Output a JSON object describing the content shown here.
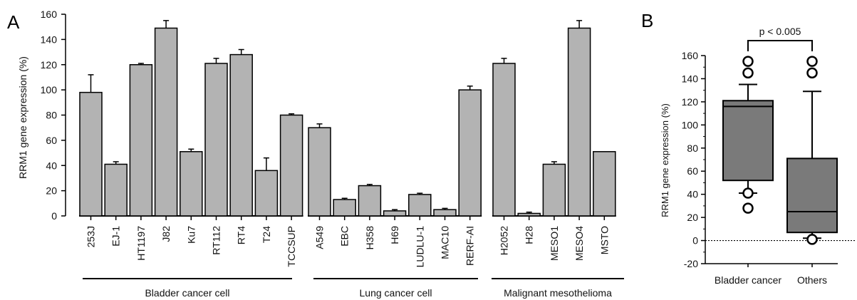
{
  "chart_data": [
    {
      "panel": "A",
      "type": "bar",
      "ylabel": "RRM1 gene expression (%)",
      "ylim": [
        0,
        160
      ],
      "yticks": [
        0,
        20,
        40,
        60,
        80,
        100,
        120,
        140,
        160
      ],
      "bar_color": "#b3b3b3",
      "groups": [
        {
          "label": "Bladder cancer cell",
          "categories": [
            "253J",
            "EJ-1",
            "HT1197",
            "J82",
            "Ku7",
            "RT112",
            "RT4",
            "T24",
            "TCCSUP"
          ],
          "values": [
            98,
            41,
            120,
            149,
            51,
            121,
            128,
            36,
            80
          ],
          "errors": [
            14,
            2,
            1,
            6,
            2,
            4,
            4,
            10,
            1
          ]
        },
        {
          "label": "Lung cancer cell",
          "categories": [
            "A549",
            "EBC",
            "H358",
            "H69",
            "LUDLU-1",
            "MAC10",
            "RERF-AI"
          ],
          "values": [
            70,
            13,
            24,
            4,
            17,
            5,
            100
          ],
          "errors": [
            3,
            1,
            1,
            1,
            1,
            1,
            3
          ]
        },
        {
          "label": "Malignant mesothelioma",
          "categories": [
            "H2052",
            "H28",
            "MESO1",
            "MESO4",
            "MSTO"
          ],
          "values": [
            121,
            2,
            41,
            149,
            51
          ],
          "errors": [
            4,
            1,
            2,
            6,
            0
          ]
        }
      ]
    },
    {
      "panel": "B",
      "type": "box",
      "ylabel": "RRM1 gene expression (%)",
      "ylim": [
        -20,
        160
      ],
      "yticks": [
        -20,
        0,
        20,
        40,
        60,
        80,
        100,
        120,
        140,
        160
      ],
      "annotation": "p < 0.005",
      "box_color": "#7a7a7a",
      "categories": [
        "Bladder cancer",
        "Others"
      ],
      "boxes": [
        {
          "q1": 52,
          "median": 116,
          "q3": 121,
          "whisker_low": 41,
          "whisker_high": 135,
          "outliers": [
            28,
            41,
            145,
            155
          ]
        },
        {
          "q1": 7,
          "median": 25,
          "q3": 71,
          "whisker_low": 2,
          "whisker_high": 129,
          "outliers": [
            1,
            145,
            155
          ]
        }
      ]
    }
  ]
}
